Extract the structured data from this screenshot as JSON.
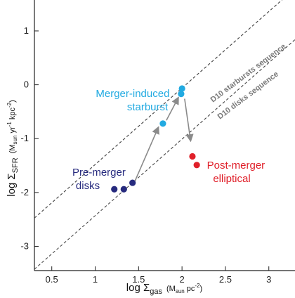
{
  "chart_data": {
    "type": "scatter",
    "xlim": [
      0.3,
      3.35
    ],
    "ylim": [
      -3.45,
      1.6
    ],
    "x_ticks": [
      0.5,
      1,
      1.5,
      2,
      2.5,
      3
    ],
    "x_tick_labels": [
      "0.5",
      "1",
      "1.5",
      "2",
      "2.5",
      "3"
    ],
    "y_ticks": [
      -3,
      -2,
      -1,
      0,
      1
    ],
    "y_tick_labels": [
      "-3",
      "-2",
      "-1",
      "0",
      "1"
    ],
    "xlabel": {
      "main": "log Σ",
      "sub": "gas",
      "units": "(M",
      "units_sub": "sun",
      "units_rest": " pc",
      "units_sup": "-2",
      "units_end": ")"
    },
    "ylabel": {
      "main": "log Σ",
      "sub": "SFR",
      "units": "(M",
      "units_sub": "sun",
      "units_rest": " yr",
      "units_sup1": "-1",
      "units_mid": " kpc",
      "units_sup2": "-2",
      "units_end": ")"
    },
    "reference_lines": [
      {
        "name": "D10 starbursts sequence",
        "slope": 1.42,
        "intercept": -2.9
      },
      {
        "name": "D10 disks sequence",
        "slope": 1.42,
        "intercept": -3.85
      }
    ],
    "series": [
      {
        "key": "pre_merger",
        "color": "#262a7e",
        "x": [
          1.22,
          1.33,
          1.43
        ],
        "y": [
          -1.94,
          -1.94,
          -1.82
        ]
      },
      {
        "key": "starburst",
        "color": "#22aae1",
        "x": [
          1.78,
          1.99,
          2.0
        ],
        "y": [
          -0.72,
          -0.17,
          -0.07
        ]
      },
      {
        "key": "post_merger",
        "color": "#e0202a",
        "x": [
          2.12,
          2.17
        ],
        "y": [
          -1.33,
          -1.49
        ]
      }
    ],
    "arrows": [
      {
        "from": [
          1.46,
          -1.78
        ],
        "to": [
          1.73,
          -0.78
        ]
      },
      {
        "from": [
          1.82,
          -0.66
        ],
        "to": [
          1.96,
          -0.23
        ]
      },
      {
        "from": [
          2.03,
          -0.26
        ],
        "to": [
          2.1,
          -1.05
        ]
      }
    ],
    "annotations": {
      "pre_merger": [
        "Pre-merger",
        "disks"
      ],
      "starburst": [
        "Merger-induced",
        "starburst"
      ],
      "post_merger": [
        "Post-merger",
        "elliptical"
      ]
    }
  }
}
